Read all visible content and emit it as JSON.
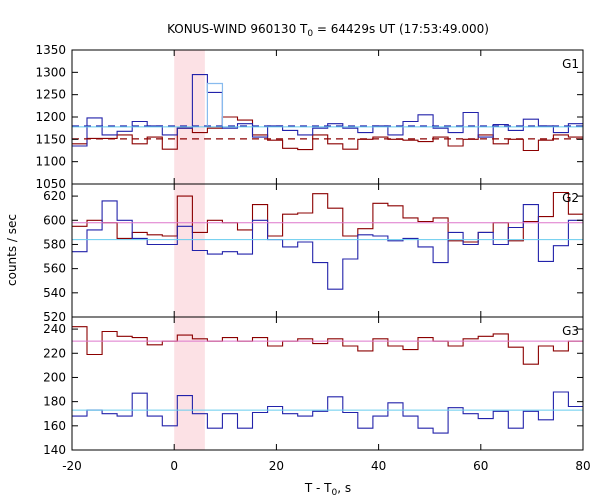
{
  "chart_data": {
    "type": "line",
    "title": "KONUS-WIND 960130 T",
    "title_sub": "0",
    "title_rest": " = 64429s UT (17:53:49.000)",
    "xlabel": "T - T",
    "xlabel_sub": "0",
    "xlabel_rest": ", s",
    "ylabel": "counts / sec",
    "xlim": [
      -20,
      80
    ],
    "x_ticks": [
      -20,
      0,
      20,
      40,
      60,
      80
    ],
    "step_width_s": 2.944,
    "highlight_interval": [
      0,
      6
    ],
    "colors": {
      "hard_series": "#8b0000",
      "soft_series": "#2222aa",
      "hard_bg": "#dd77cc",
      "soft_bg": "#66ccee",
      "highlight": "#f9c9cf",
      "peak_fill": "#88bbee"
    },
    "panels": [
      {
        "label": "G1",
        "ylim": [
          1050,
          1350
        ],
        "y_ticks": [
          1050,
          1100,
          1150,
          1200,
          1250,
          1300,
          1350
        ],
        "bins_start": -20,
        "series": [
          {
            "role": "hard",
            "values": [
              1140,
              1152,
              1152,
              1160,
              1140,
              1155,
              1128,
              1175,
              1165,
              1175,
              1200,
              1193,
              1160,
              1148,
              1130,
              1127,
              1160,
              1140,
              1128,
              1150,
              1155,
              1150,
              1148,
              1145,
              1155,
              1135,
              1150,
              1160,
              1140,
              1150,
              1125,
              1148,
              1160,
              1155
            ]
          },
          {
            "role": "soft",
            "values": [
              1135,
              1198,
              1160,
              1168,
              1190,
              1180,
              1160,
              1175,
              1295,
              1255,
              1175,
              1185,
              1155,
              1180,
              1170,
              1160,
              1175,
              1185,
              1175,
              1165,
              1180,
              1160,
              1190,
              1205,
              1175,
              1165,
              1210,
              1155,
              1183,
              1170,
              1195,
              1180,
              1165,
              1185
            ]
          },
          {
            "role": "hard_bg_dashed",
            "values": [
              1151
            ]
          },
          {
            "role": "soft_bg_dashed",
            "values": [
              1180
            ]
          }
        ]
      },
      {
        "label": "G2",
        "ylim": [
          520,
          630
        ],
        "y_ticks": [
          520,
          540,
          560,
          580,
          600,
          620
        ],
        "bins_start": -20,
        "series": [
          {
            "role": "hard",
            "values": [
              595,
              600,
              598,
              585,
              590,
              588,
              587,
              620,
              590,
              600,
              598,
              592,
              613,
              587,
              605,
              606,
              622,
              610,
              587,
              593,
              614,
              612,
              602,
              599,
              602,
              583,
              582,
              590,
              598,
              583,
              599,
              603,
              623,
              605
            ]
          },
          {
            "role": "soft",
            "values": [
              574,
              592,
              616,
              600,
              585,
              580,
              580,
              595,
              575,
              572,
              574,
              572,
              600,
              584,
              578,
              582,
              565,
              543,
              568,
              588,
              587,
              583,
              585,
              578,
              565,
              590,
              580,
              590,
              580,
              594,
              613,
              566,
              579,
              600
            ]
          },
          {
            "role": "hard_bg",
            "values": [
              598
            ]
          },
          {
            "role": "soft_bg",
            "values": [
              584
            ]
          }
        ]
      },
      {
        "label": "G3",
        "ylim": [
          140,
          250
        ],
        "y_ticks": [
          140,
          160,
          180,
          200,
          220,
          240
        ],
        "bins_start": -20,
        "series": [
          {
            "role": "hard",
            "values": [
              242,
              219,
              238,
              234,
              233,
              227,
              230,
              235,
              232,
              230,
              233,
              230,
              233,
              226,
              230,
              232,
              228,
              232,
              226,
              222,
              232,
              226,
              223,
              233,
              230,
              226,
              232,
              234,
              236,
              225,
              211,
              226,
              222,
              230
            ]
          },
          {
            "role": "soft",
            "values": [
              168,
              173,
              170,
              168,
              187,
              168,
              160,
              185,
              170,
              158,
              170,
              158,
              171,
              176,
              170,
              168,
              172,
              184,
              171,
              158,
              168,
              179,
              168,
              158,
              154,
              175,
              170,
              166,
              172,
              158,
              172,
              165,
              188,
              176
            ]
          },
          {
            "role": "hard_bg",
            "values": [
              230
            ]
          },
          {
            "role": "soft_bg",
            "values": [
              173
            ]
          }
        ]
      }
    ]
  }
}
